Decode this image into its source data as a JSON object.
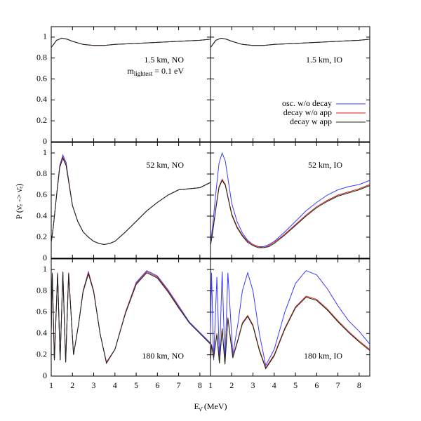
{
  "chart_data": [
    {
      "type": "line",
      "annotation": "1.5 km, NO",
      "note": {
        "main": "m",
        "sub": "lightest",
        "rest": " = 0.1 eV"
      },
      "xlim": [
        1,
        8.5
      ],
      "ylim": [
        0,
        1.1
      ],
      "yticks": [
        0,
        0.2,
        0.4,
        0.6,
        0.8,
        1
      ],
      "x": [
        1,
        1.25,
        1.5,
        1.75,
        2,
        2.5,
        3,
        3.5,
        4,
        5,
        6,
        7,
        8,
        8.5
      ],
      "series": [
        {
          "color": "#3b3bff",
          "values": [
            0.9,
            0.97,
            0.99,
            0.98,
            0.96,
            0.93,
            0.92,
            0.92,
            0.93,
            0.94,
            0.95,
            0.96,
            0.97,
            0.98
          ]
        },
        {
          "color": "#d42020",
          "values": [
            0.9,
            0.97,
            0.99,
            0.98,
            0.96,
            0.93,
            0.92,
            0.92,
            0.93,
            0.94,
            0.95,
            0.96,
            0.97,
            0.98
          ]
        },
        {
          "color": "#1a2a1a",
          "values": [
            0.9,
            0.97,
            0.99,
            0.98,
            0.96,
            0.93,
            0.92,
            0.92,
            0.93,
            0.94,
            0.95,
            0.96,
            0.97,
            0.98
          ]
        }
      ]
    },
    {
      "type": "line",
      "annotation": "1.5 km, IO",
      "xlim": [
        1,
        8.5
      ],
      "ylim": [
        0,
        1.1
      ],
      "x": [
        1,
        1.25,
        1.5,
        1.75,
        2,
        2.5,
        3,
        3.5,
        4,
        5,
        6,
        7,
        8,
        8.5
      ],
      "series": [
        {
          "name": "osc. w/o decay",
          "color": "#3b3bff",
          "values": [
            0.9,
            0.97,
            0.99,
            0.98,
            0.96,
            0.93,
            0.92,
            0.92,
            0.93,
            0.94,
            0.95,
            0.96,
            0.97,
            0.98
          ]
        },
        {
          "name": "decay w/o app",
          "color": "#d42020",
          "values": [
            0.9,
            0.97,
            0.99,
            0.98,
            0.96,
            0.93,
            0.92,
            0.92,
            0.93,
            0.94,
            0.95,
            0.96,
            0.97,
            0.98
          ]
        },
        {
          "name": "decay w app",
          "color": "#1a2a1a",
          "values": [
            0.9,
            0.97,
            0.99,
            0.98,
            0.96,
            0.93,
            0.92,
            0.92,
            0.93,
            0.94,
            0.95,
            0.96,
            0.97,
            0.98
          ]
        }
      ]
    },
    {
      "type": "line",
      "annotation": "52 km, NO",
      "xlim": [
        1,
        8.5
      ],
      "ylim": [
        0,
        1.1
      ],
      "yticks": [
        0,
        0.2,
        0.4,
        0.6,
        0.8,
        1
      ],
      "x": [
        1,
        1.1,
        1.25,
        1.4,
        1.55,
        1.7,
        1.85,
        2,
        2.25,
        2.5,
        2.75,
        3,
        3.25,
        3.5,
        3.75,
        4,
        4.5,
        5,
        5.5,
        6,
        6.5,
        7,
        7.5,
        8,
        8.5
      ],
      "series": [
        {
          "color": "#3b3bff",
          "values": [
            0.15,
            0.3,
            0.6,
            0.88,
            0.98,
            0.91,
            0.7,
            0.5,
            0.35,
            0.25,
            0.2,
            0.16,
            0.14,
            0.13,
            0.14,
            0.16,
            0.25,
            0.35,
            0.45,
            0.53,
            0.6,
            0.65,
            0.66,
            0.67,
            0.72
          ]
        },
        {
          "color": "#d42020",
          "values": [
            0.15,
            0.3,
            0.6,
            0.87,
            0.96,
            0.89,
            0.7,
            0.5,
            0.35,
            0.25,
            0.2,
            0.16,
            0.14,
            0.13,
            0.14,
            0.16,
            0.25,
            0.35,
            0.45,
            0.53,
            0.6,
            0.65,
            0.66,
            0.67,
            0.72
          ]
        },
        {
          "color": "#1a2a1a",
          "values": [
            0.15,
            0.3,
            0.59,
            0.86,
            0.95,
            0.88,
            0.69,
            0.5,
            0.35,
            0.25,
            0.2,
            0.16,
            0.14,
            0.13,
            0.14,
            0.16,
            0.25,
            0.35,
            0.45,
            0.53,
            0.6,
            0.65,
            0.66,
            0.67,
            0.72
          ]
        }
      ]
    },
    {
      "type": "line",
      "annotation": "52 km, IO",
      "xlim": [
        1,
        8.5
      ],
      "ylim": [
        0,
        1.1
      ],
      "x": [
        1,
        1.1,
        1.25,
        1.4,
        1.55,
        1.7,
        1.85,
        2,
        2.25,
        2.5,
        2.75,
        3,
        3.25,
        3.5,
        3.75,
        4,
        4.5,
        5,
        5.5,
        6,
        6.5,
        7,
        7.5,
        8,
        8.5
      ],
      "series": [
        {
          "color": "#3b3bff",
          "values": [
            0.15,
            0.3,
            0.62,
            0.9,
            1.0,
            0.92,
            0.72,
            0.52,
            0.35,
            0.24,
            0.17,
            0.13,
            0.11,
            0.11,
            0.13,
            0.16,
            0.25,
            0.35,
            0.45,
            0.53,
            0.6,
            0.65,
            0.68,
            0.7,
            0.74
          ]
        },
        {
          "color": "#d42020",
          "values": [
            0.13,
            0.25,
            0.48,
            0.68,
            0.75,
            0.7,
            0.56,
            0.42,
            0.3,
            0.22,
            0.16,
            0.13,
            0.11,
            0.1,
            0.12,
            0.15,
            0.23,
            0.32,
            0.41,
            0.49,
            0.55,
            0.6,
            0.63,
            0.66,
            0.7
          ]
        },
        {
          "color": "#1a2a1a",
          "values": [
            0.12,
            0.24,
            0.47,
            0.67,
            0.74,
            0.69,
            0.55,
            0.41,
            0.29,
            0.21,
            0.15,
            0.12,
            0.1,
            0.1,
            0.11,
            0.14,
            0.22,
            0.31,
            0.4,
            0.48,
            0.54,
            0.59,
            0.62,
            0.65,
            0.69
          ]
        }
      ]
    },
    {
      "type": "line",
      "annotation": "180 km, NO",
      "xlim": [
        1,
        8.5
      ],
      "ylim": [
        0,
        1.1
      ],
      "yticks": [
        0,
        0.2,
        0.4,
        0.6,
        0.8,
        1
      ],
      "xticks": [
        1,
        2,
        3,
        4,
        5,
        6,
        7,
        8
      ],
      "x": [
        1,
        1.05,
        1.15,
        1.3,
        1.42,
        1.55,
        1.68,
        1.82,
        2.05,
        2.3,
        2.5,
        2.75,
        3,
        3.3,
        3.6,
        4,
        4.5,
        5,
        5.5,
        6,
        6.5,
        7,
        7.5,
        8,
        8.5
      ],
      "series": [
        {
          "color": "#3b3bff",
          "values": [
            0.4,
            0.97,
            0.15,
            0.97,
            0.15,
            0.98,
            0.13,
            0.97,
            0.2,
            0.5,
            0.8,
            0.98,
            0.8,
            0.4,
            0.13,
            0.25,
            0.6,
            0.88,
            0.99,
            0.94,
            0.81,
            0.66,
            0.51,
            0.41,
            0.31
          ]
        },
        {
          "color": "#d42020",
          "values": [
            0.4,
            0.97,
            0.15,
            0.97,
            0.15,
            0.98,
            0.13,
            0.97,
            0.2,
            0.5,
            0.8,
            0.97,
            0.8,
            0.4,
            0.13,
            0.25,
            0.6,
            0.87,
            0.98,
            0.93,
            0.8,
            0.65,
            0.5,
            0.4,
            0.3
          ]
        },
        {
          "color": "#1a2a1a",
          "values": [
            0.4,
            0.96,
            0.15,
            0.96,
            0.15,
            0.97,
            0.13,
            0.96,
            0.2,
            0.5,
            0.79,
            0.96,
            0.79,
            0.4,
            0.12,
            0.25,
            0.59,
            0.86,
            0.97,
            0.92,
            0.79,
            0.64,
            0.5,
            0.4,
            0.3
          ]
        }
      ]
    },
    {
      "type": "line",
      "annotation": "180 km, IO",
      "xlim": [
        1,
        8.5
      ],
      "ylim": [
        0,
        1.1
      ],
      "xticks": [
        1,
        2,
        3,
        4,
        5,
        6,
        7,
        8
      ],
      "x": [
        1,
        1.05,
        1.15,
        1.3,
        1.42,
        1.55,
        1.68,
        1.82,
        2.05,
        2.3,
        2.5,
        2.75,
        3,
        3.3,
        3.6,
        4,
        4.5,
        5,
        5.5,
        6,
        6.5,
        7,
        7.5,
        8,
        8.5
      ],
      "series": [
        {
          "color": "#3b3bff",
          "values": [
            0.4,
            0.97,
            0.15,
            0.93,
            0.15,
            0.98,
            0.13,
            0.97,
            0.2,
            0.5,
            0.8,
            0.97,
            0.8,
            0.4,
            0.1,
            0.25,
            0.6,
            0.87,
            0.99,
            0.95,
            0.82,
            0.66,
            0.52,
            0.42,
            0.3
          ]
        },
        {
          "color": "#d42020",
          "values": [
            0.15,
            0.3,
            0.18,
            0.4,
            0.13,
            0.45,
            0.12,
            0.55,
            0.18,
            0.35,
            0.5,
            0.57,
            0.48,
            0.25,
            0.08,
            0.2,
            0.45,
            0.65,
            0.75,
            0.72,
            0.63,
            0.52,
            0.42,
            0.33,
            0.25
          ]
        },
        {
          "color": "#1a2a1a",
          "values": [
            0.14,
            0.29,
            0.17,
            0.39,
            0.12,
            0.44,
            0.11,
            0.54,
            0.17,
            0.34,
            0.49,
            0.56,
            0.47,
            0.24,
            0.07,
            0.19,
            0.44,
            0.64,
            0.74,
            0.71,
            0.62,
            0.51,
            0.41,
            0.32,
            0.24
          ]
        }
      ]
    }
  ],
  "x_label": {
    "main": "E",
    "sub": "ν̄",
    "rest": " (MeV)"
  },
  "y_label": "P (ν̄ₑ -> ν̄ₑ)"
}
